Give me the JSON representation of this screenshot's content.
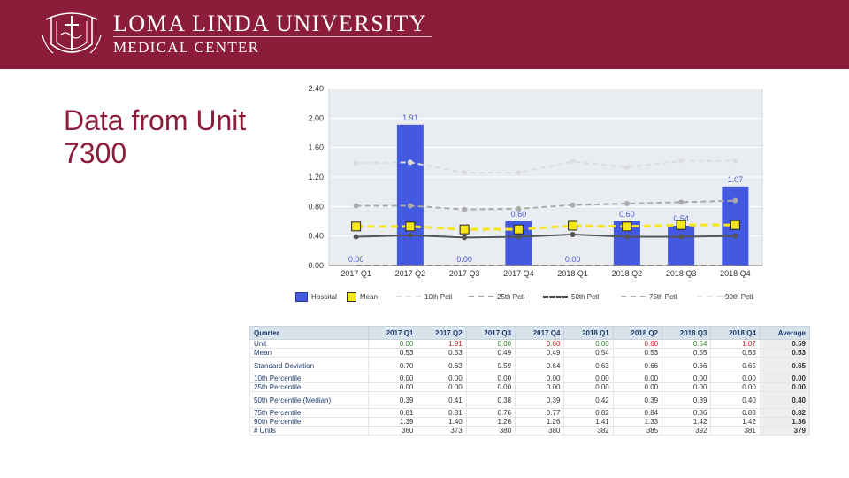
{
  "header": {
    "org_name": "LOMA LINDA UNIVERSITY",
    "org_sub": "MEDICAL CENTER",
    "seal_icon": "university-seal-icon"
  },
  "slide": {
    "title": "Data from Unit 7300"
  },
  "colors": {
    "banner": "#8b1d3b",
    "hospital": "#4359e0",
    "mean": "#f5e61a",
    "p10": "#cccccc",
    "p25": "#999999",
    "p50": "#555555",
    "p75": "#aaaaaa",
    "p90": "#dddddd"
  },
  "chart_data": {
    "type": "bar",
    "categories": [
      "2017 Q1",
      "2017 Q2",
      "2017 Q3",
      "2017 Q4",
      "2018 Q1",
      "2018 Q2",
      "2018 Q3",
      "2018 Q4"
    ],
    "ylim": [
      0,
      2.4
    ],
    "yticks": [
      "0.00",
      "0.40",
      "0.80",
      "1.20",
      "1.60",
      "2.00",
      "2.40"
    ],
    "grid": true,
    "legend_position": "bottom",
    "series": [
      {
        "name": "Hospital",
        "kind": "bar",
        "values": [
          0.0,
          1.91,
          0.0,
          0.6,
          0.0,
          0.6,
          0.54,
          1.07
        ],
        "labels": [
          "0.00",
          "1.91",
          "0.00",
          "0.60",
          "0.00",
          "0.60",
          "0.54",
          "1.07"
        ]
      },
      {
        "name": "Mean",
        "kind": "line",
        "values": [
          0.53,
          0.53,
          0.49,
          0.49,
          0.54,
          0.53,
          0.55,
          0.55
        ]
      },
      {
        "name": "10th Pctl",
        "kind": "line",
        "values": [
          0.0,
          0.0,
          0.0,
          0.0,
          0.0,
          0.0,
          0.0,
          0.0
        ]
      },
      {
        "name": "25th Pctl",
        "kind": "line",
        "values": [
          0.0,
          0.0,
          0.0,
          0.0,
          0.0,
          0.0,
          0.0,
          0.0
        ]
      },
      {
        "name": "50th Pctl",
        "kind": "line",
        "values": [
          0.39,
          0.41,
          0.38,
          0.39,
          0.42,
          0.39,
          0.39,
          0.4
        ]
      },
      {
        "name": "75th Pctl",
        "kind": "line",
        "values": [
          0.81,
          0.81,
          0.76,
          0.77,
          0.82,
          0.84,
          0.86,
          0.88
        ]
      },
      {
        "name": "90th Pctl",
        "kind": "line",
        "values": [
          1.39,
          1.4,
          1.26,
          1.26,
          1.41,
          1.33,
          1.42,
          1.42
        ]
      }
    ]
  },
  "table": {
    "headers": [
      "Quarter",
      "2017 Q1",
      "2017 Q2",
      "2017 Q3",
      "2017 Q4",
      "2018 Q1",
      "2018 Q2",
      "2018 Q3",
      "2018 Q4",
      "Average"
    ],
    "rows": [
      {
        "label": "Unit",
        "cells": [
          "0.00",
          "1.91",
          "0.00",
          "0.60",
          "0.00",
          "0.60",
          "0.54",
          "1.07"
        ],
        "avg": "0.59",
        "colors": [
          "g",
          "r",
          "g",
          "r",
          "g",
          "r",
          "g",
          "r"
        ]
      },
      {
        "label": "Mean",
        "cells": [
          "0.53",
          "0.53",
          "0.49",
          "0.49",
          "0.54",
          "0.53",
          "0.55",
          "0.55"
        ],
        "avg": "0.53"
      },
      {
        "label": "Standard Deviation",
        "cells": [
          "0.70",
          "0.63",
          "0.59",
          "0.64",
          "0.63",
          "0.66",
          "0.66",
          "0.65"
        ],
        "avg": "0.65",
        "tall": true
      },
      {
        "label": "10th Percentile",
        "cells": [
          "0.00",
          "0.00",
          "0.00",
          "0.00",
          "0.00",
          "0.00",
          "0.00",
          "0.00"
        ],
        "avg": "0.00"
      },
      {
        "label": "25th Percentile",
        "cells": [
          "0.00",
          "0.00",
          "0.00",
          "0.00",
          "0.00",
          "0.00",
          "0.00",
          "0.00"
        ],
        "avg": "0.00"
      },
      {
        "label": "50th Percentile (Median)",
        "cells": [
          "0.39",
          "0.41",
          "0.38",
          "0.39",
          "0.42",
          "0.39",
          "0.39",
          "0.40"
        ],
        "avg": "0.40",
        "tall": true
      },
      {
        "label": "75th Percentile",
        "cells": [
          "0.81",
          "0.81",
          "0.76",
          "0.77",
          "0.82",
          "0.84",
          "0.86",
          "0.88"
        ],
        "avg": "0.82"
      },
      {
        "label": "90th Percentile",
        "cells": [
          "1.39",
          "1.40",
          "1.26",
          "1.26",
          "1.41",
          "1.33",
          "1.42",
          "1.42"
        ],
        "avg": "1.36"
      },
      {
        "label": "# Units",
        "cells": [
          "360",
          "373",
          "380",
          "380",
          "382",
          "385",
          "392",
          "381"
        ],
        "avg": "379"
      }
    ]
  }
}
